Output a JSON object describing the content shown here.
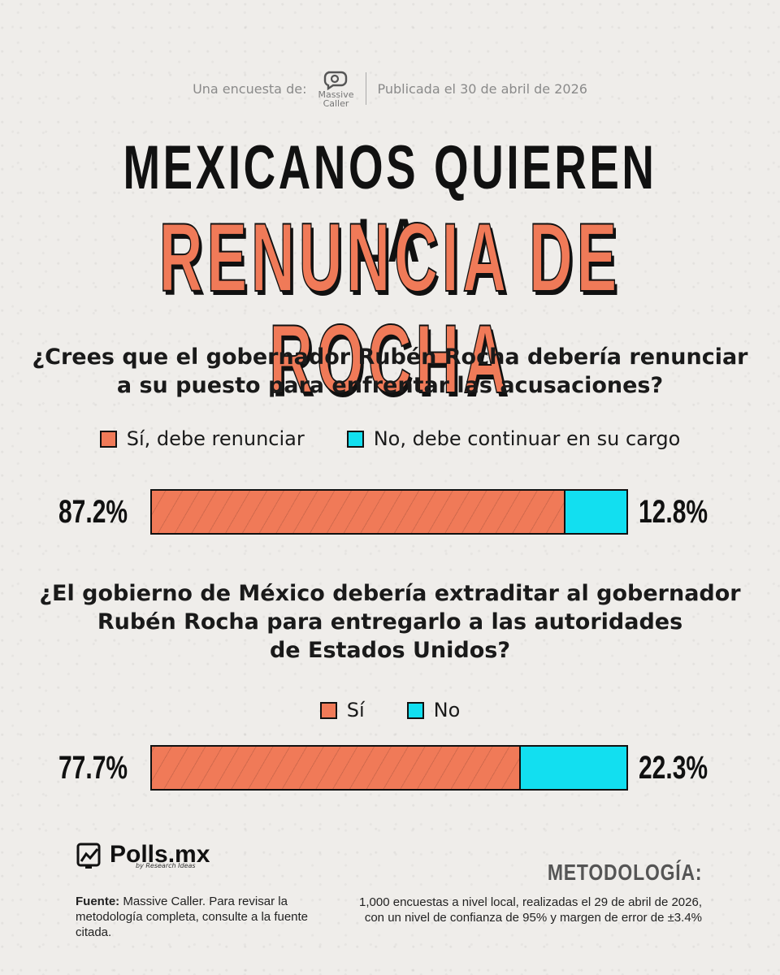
{
  "header": {
    "survey_by": "Una encuesta de:",
    "logo_text_1": "Massive",
    "logo_text_2": "Caller",
    "published": "Publicada el 30 de abril de 2026"
  },
  "title": {
    "line1": "MEXICANOS QUIEREN LA",
    "line2": "RENUNCIA DE ROCHA"
  },
  "colors": {
    "yes": "#f07a58",
    "no": "#12dff0",
    "background": "#efedea"
  },
  "chart_data": [
    {
      "type": "bar",
      "stacked": true,
      "orientation": "horizontal",
      "title_lines": [
        "¿Crees que el gobernador Rubén Rocha debería renunciar",
        "a su puesto para enfrentar las acusaciones?"
      ],
      "series": [
        {
          "name": "Sí, debe renunciar",
          "value": 87.2,
          "label": "87.2%",
          "color": "#f07a58"
        },
        {
          "name": "No, debe continuar en su cargo",
          "value": 12.8,
          "label": "12.8%",
          "color": "#12dff0"
        }
      ],
      "xlim": [
        0,
        100
      ]
    },
    {
      "type": "bar",
      "stacked": true,
      "orientation": "horizontal",
      "title_lines": [
        "¿El gobierno de México debería extraditar al gobernador",
        "Rubén Rocha para entregarlo a las autoridades",
        "de Estados Unidos?"
      ],
      "series": [
        {
          "name": "Sí",
          "value": 77.7,
          "label": "77.7%",
          "color": "#f07a58"
        },
        {
          "name": "No",
          "value": 22.3,
          "label": "22.3%",
          "color": "#12dff0"
        }
      ],
      "xlim": [
        0,
        100
      ]
    }
  ],
  "footer": {
    "brand": "Polls.mx",
    "brand_tag": "by Research Ideas",
    "fuente_label": "Fuente:",
    "fuente_text": " Massive Caller. Para revisar la metodología completa, consulte a la fuente citada.",
    "metodologia_title": "METODOLOGÍA:",
    "metodologia_text_1": "1,000 encuestas a nivel local, realizadas el 29 de abril de 2026,",
    "metodologia_text_2": "con un nivel de confianza de 95% y margen de error de ±3.4%"
  }
}
